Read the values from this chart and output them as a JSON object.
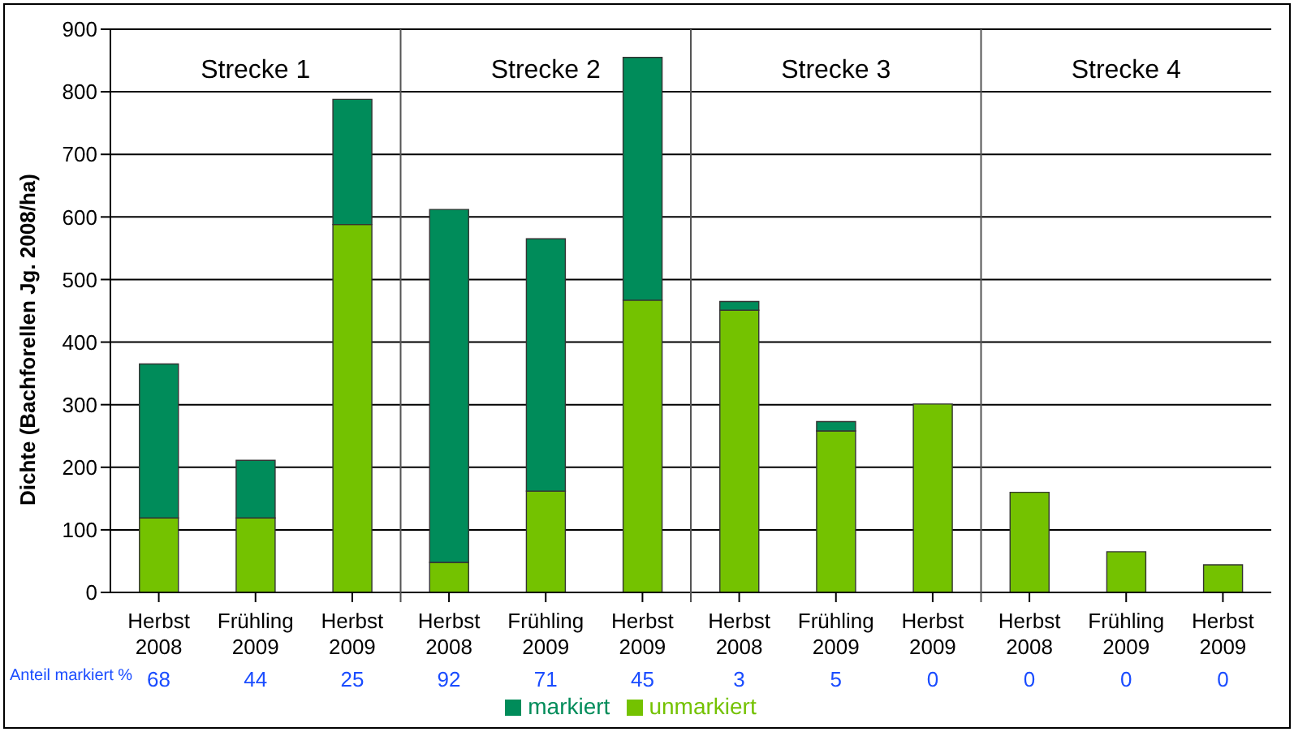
{
  "chart_data": {
    "type": "bar",
    "stacked": true,
    "ylabel": "Dichte (Bachforellen Jg. 2008/ha)",
    "categories": [
      "Herbst 2008",
      "Frühling 2009",
      "Herbst 2009",
      "Herbst 2008",
      "Frühling 2009",
      "Herbst 2009",
      "Herbst 2008",
      "Frühling 2009",
      "Herbst 2009",
      "Herbst 2008",
      "Frühling 2009",
      "Herbst 2009"
    ],
    "series": [
      {
        "name": "unmarkiert",
        "color": "#74c200",
        "values": [
          119,
          119,
          588,
          48,
          162,
          467,
          451,
          258,
          301,
          160,
          65,
          44
        ]
      },
      {
        "name": "markiert",
        "color": "#008c5a",
        "values": [
          246,
          92,
          200,
          564,
          403,
          388,
          14,
          15,
          0,
          0,
          0,
          0
        ]
      }
    ],
    "ylim": [
      0,
      900
    ],
    "yticks": [
      0,
      100,
      200,
      300,
      400,
      500,
      600,
      700,
      800,
      900
    ],
    "grid": "y",
    "legend": "bottom",
    "annotations": [
      "Strecke 1",
      "Strecke 2",
      "Strecke 3",
      "Strecke 4",
      "Anteil markiert %",
      "68",
      "44",
      "25",
      "92",
      "71",
      "45",
      "3",
      "5",
      "0",
      "0",
      "0",
      "0"
    ]
  }
}
